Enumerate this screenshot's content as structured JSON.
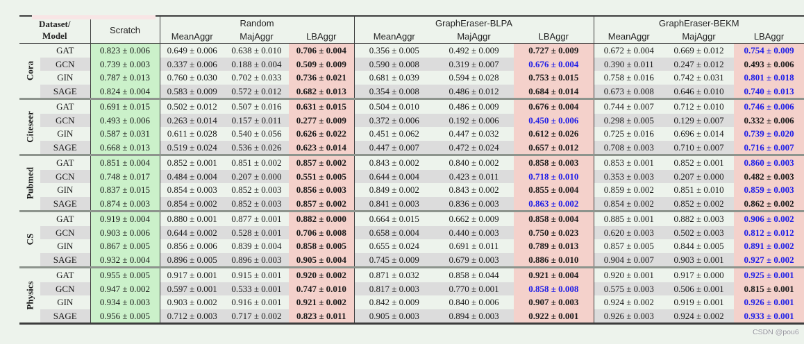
{
  "page": {
    "watermark": "CSDN @pou6"
  },
  "table": {
    "header": {
      "dataset_line1": "Dataset/",
      "dataset_line2": "Model",
      "groups": [
        {
          "label": "Scratch",
          "cols": []
        },
        {
          "label": "Random",
          "cols": [
            "MeanAggr",
            "MajAggr",
            "LBAggr"
          ]
        },
        {
          "label": "GraphEraser-BLPA",
          "cols": [
            "MeanAggr",
            "MajAggr",
            "LBAggr"
          ]
        },
        {
          "label": "GraphEraser-BEKM",
          "cols": [
            "MeanAggr",
            "MajAggr",
            "LBAggr"
          ]
        }
      ]
    },
    "legend_colors": {
      "scratch_bg": "#cbf1ca",
      "lbaggr_bg": "#f4d1cb",
      "stripe_bg": "#dcdcdc",
      "best_blue": "#1c1ce8"
    },
    "blocks": [
      {
        "dataset": "Cora",
        "rows": [
          {
            "model": "GAT",
            "blue": [
              9
            ],
            "values": [
              "0.823 ± 0.006",
              "0.649 ± 0.006",
              "0.638 ± 0.010",
              "0.706 ± 0.004",
              "0.356 ± 0.005",
              "0.492 ± 0.009",
              "0.727 ± 0.009",
              "0.672 ± 0.004",
              "0.669 ± 0.012",
              "0.754 ± 0.009"
            ]
          },
          {
            "model": "GCN",
            "blue": [
              6
            ],
            "values": [
              "0.739 ± 0.003",
              "0.337 ± 0.006",
              "0.188 ± 0.004",
              "0.509 ± 0.009",
              "0.590 ± 0.008",
              "0.319 ± 0.007",
              "0.676 ± 0.004",
              "0.390 ± 0.011",
              "0.247 ± 0.012",
              "0.493 ± 0.006"
            ]
          },
          {
            "model": "GIN",
            "blue": [
              9
            ],
            "values": [
              "0.787 ± 0.013",
              "0.760 ± 0.030",
              "0.702 ± 0.033",
              "0.736 ± 0.021",
              "0.681 ± 0.039",
              "0.594 ± 0.028",
              "0.753 ± 0.015",
              "0.758 ± 0.016",
              "0.742 ± 0.031",
              "0.801 ± 0.018"
            ]
          },
          {
            "model": "SAGE",
            "blue": [
              9
            ],
            "values": [
              "0.824 ± 0.004",
              "0.583 ± 0.009",
              "0.572 ± 0.012",
              "0.682 ± 0.013",
              "0.354 ± 0.008",
              "0.486 ± 0.012",
              "0.684 ± 0.014",
              "0.673 ± 0.008",
              "0.646 ± 0.010",
              "0.740 ± 0.013"
            ]
          }
        ]
      },
      {
        "dataset": "Citeseer",
        "rows": [
          {
            "model": "GAT",
            "blue": [
              9
            ],
            "values": [
              "0.691 ± 0.015",
              "0.502 ± 0.012",
              "0.507 ± 0.016",
              "0.631 ± 0.015",
              "0.504 ± 0.010",
              "0.486 ± 0.009",
              "0.676 ± 0.004",
              "0.744 ± 0.007",
              "0.712 ± 0.010",
              "0.746 ± 0.006"
            ]
          },
          {
            "model": "GCN",
            "blue": [
              6
            ],
            "values": [
              "0.493 ± 0.006",
              "0.263 ± 0.014",
              "0.157 ± 0.011",
              "0.277 ± 0.009",
              "0.372 ± 0.006",
              "0.192 ± 0.006",
              "0.450 ± 0.006",
              "0.298 ± 0.005",
              "0.129 ± 0.007",
              "0.332 ± 0.006"
            ]
          },
          {
            "model": "GIN",
            "blue": [
              9
            ],
            "values": [
              "0.587 ± 0.031",
              "0.611 ± 0.028",
              "0.540 ± 0.056",
              "0.626 ± 0.022",
              "0.451 ± 0.062",
              "0.447 ± 0.032",
              "0.612 ± 0.026",
              "0.725 ± 0.016",
              "0.696 ± 0.014",
              "0.739 ± 0.020"
            ]
          },
          {
            "model": "SAGE",
            "blue": [
              9
            ],
            "values": [
              "0.668 ± 0.013",
              "0.519 ± 0.024",
              "0.536 ± 0.026",
              "0.623 ± 0.014",
              "0.447 ± 0.007",
              "0.472 ± 0.024",
              "0.657 ± 0.012",
              "0.708 ± 0.003",
              "0.710 ± 0.007",
              "0.716 ± 0.007"
            ]
          }
        ]
      },
      {
        "dataset": "Pubmed",
        "rows": [
          {
            "model": "GAT",
            "blue": [
              9
            ],
            "values": [
              "0.851 ± 0.004",
              "0.852 ± 0.001",
              "0.851 ± 0.002",
              "0.857 ± 0.002",
              "0.843 ± 0.002",
              "0.840 ± 0.002",
              "0.858 ± 0.003",
              "0.853 ± 0.001",
              "0.852 ± 0.001",
              "0.860 ± 0.003"
            ]
          },
          {
            "model": "GCN",
            "blue": [
              6
            ],
            "values": [
              "0.748 ± 0.017",
              "0.484 ± 0.004",
              "0.207 ± 0.000",
              "0.551 ± 0.005",
              "0.644 ± 0.004",
              "0.423 ± 0.011",
              "0.718 ± 0.010",
              "0.353 ± 0.003",
              "0.207 ± 0.000",
              "0.482 ± 0.003"
            ]
          },
          {
            "model": "GIN",
            "blue": [
              9
            ],
            "values": [
              "0.837 ± 0.015",
              "0.854 ± 0.003",
              "0.852 ± 0.003",
              "0.856 ± 0.003",
              "0.849 ± 0.002",
              "0.843 ± 0.002",
              "0.855 ± 0.004",
              "0.859 ± 0.002",
              "0.851 ± 0.010",
              "0.859 ± 0.003"
            ]
          },
          {
            "model": "SAGE",
            "blue": [
              6
            ],
            "values": [
              "0.874 ± 0.003",
              "0.854 ± 0.002",
              "0.852 ± 0.003",
              "0.857 ± 0.002",
              "0.841 ± 0.003",
              "0.836 ± 0.003",
              "0.863 ± 0.002",
              "0.854 ± 0.002",
              "0.852 ± 0.002",
              "0.862 ± 0.002"
            ]
          }
        ]
      },
      {
        "dataset": "CS",
        "rows": [
          {
            "model": "GAT",
            "blue": [
              9
            ],
            "values": [
              "0.919 ± 0.004",
              "0.880 ± 0.001",
              "0.877 ± 0.001",
              "0.882 ± 0.000",
              "0.664 ± 0.015",
              "0.662 ± 0.009",
              "0.858 ± 0.004",
              "0.885 ± 0.001",
              "0.882 ± 0.003",
              "0.906 ± 0.002"
            ]
          },
          {
            "model": "GCN",
            "blue": [
              9
            ],
            "values": [
              "0.903 ± 0.006",
              "0.644 ± 0.002",
              "0.528 ± 0.001",
              "0.706 ± 0.008",
              "0.658 ± 0.004",
              "0.440 ± 0.003",
              "0.750 ± 0.023",
              "0.620 ± 0.003",
              "0.502 ± 0.003",
              "0.812 ± 0.012"
            ]
          },
          {
            "model": "GIN",
            "blue": [
              9
            ],
            "values": [
              "0.867 ± 0.005",
              "0.856 ± 0.006",
              "0.839 ± 0.004",
              "0.858 ± 0.005",
              "0.655 ± 0.024",
              "0.691 ± 0.011",
              "0.789 ± 0.013",
              "0.857 ± 0.005",
              "0.844 ± 0.005",
              "0.891 ± 0.002"
            ]
          },
          {
            "model": "SAGE",
            "blue": [
              9
            ],
            "values": [
              "0.932 ± 0.004",
              "0.896 ± 0.005",
              "0.896 ± 0.003",
              "0.905 ± 0.004",
              "0.745 ± 0.009",
              "0.679 ± 0.003",
              "0.886 ± 0.010",
              "0.904 ± 0.007",
              "0.903 ± 0.001",
              "0.927 ± 0.002"
            ]
          }
        ]
      },
      {
        "dataset": "Physics",
        "rows": [
          {
            "model": "GAT",
            "blue": [
              9
            ],
            "values": [
              "0.955 ± 0.005",
              "0.917 ± 0.001",
              "0.915 ± 0.001",
              "0.920 ± 0.002",
              "0.871 ± 0.032",
              "0.858 ± 0.044",
              "0.921 ± 0.004",
              "0.920 ± 0.001",
              "0.917 ± 0.000",
              "0.925 ± 0.001"
            ]
          },
          {
            "model": "GCN",
            "blue": [
              6
            ],
            "values": [
              "0.947 ± 0.002",
              "0.597 ± 0.001",
              "0.533 ± 0.001",
              "0.747 ± 0.010",
              "0.817 ± 0.003",
              "0.770 ± 0.001",
              "0.858 ± 0.008",
              "0.575 ± 0.003",
              "0.506 ± 0.001",
              "0.815 ± 0.001"
            ]
          },
          {
            "model": "GIN",
            "blue": [
              9
            ],
            "values": [
              "0.934 ± 0.003",
              "0.903 ± 0.002",
              "0.916 ± 0.001",
              "0.921 ± 0.002",
              "0.842 ± 0.009",
              "0.840 ± 0.006",
              "0.907 ± 0.003",
              "0.924 ± 0.002",
              "0.919 ± 0.001",
              "0.926 ± 0.001"
            ]
          },
          {
            "model": "SAGE",
            "blue": [
              9
            ],
            "values": [
              "0.956 ± 0.005",
              "0.712 ± 0.003",
              "0.717 ± 0.002",
              "0.823 ± 0.011",
              "0.905 ± 0.003",
              "0.894 ± 0.003",
              "0.922 ± 0.001",
              "0.926 ± 0.003",
              "0.924 ± 0.002",
              "0.933 ± 0.001"
            ]
          }
        ]
      }
    ]
  }
}
